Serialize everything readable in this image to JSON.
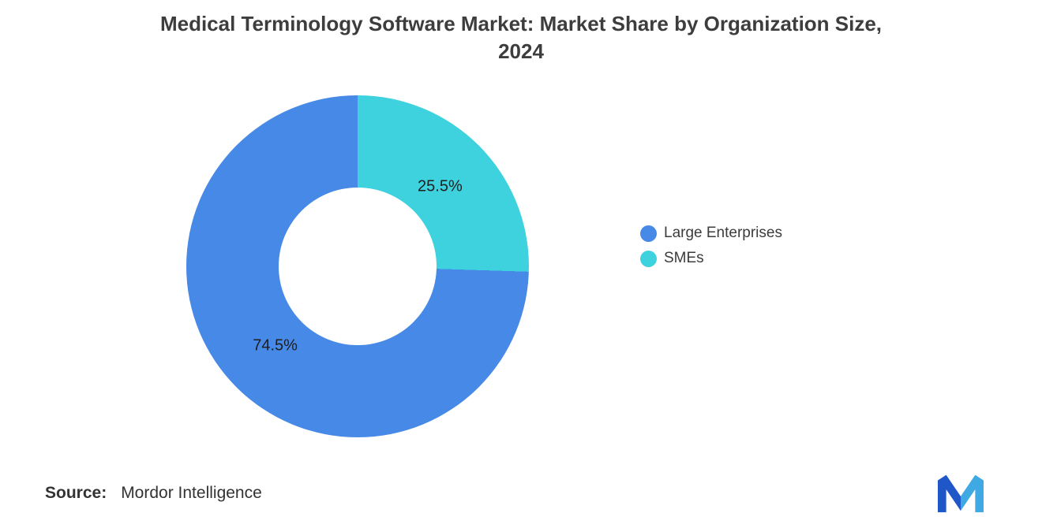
{
  "chart_data": {
    "type": "pie",
    "subtype": "donut",
    "title": "Medical Terminology Software Market: Market Share by Organization Size, 2024",
    "title_lines": [
      "Medical Terminology Software Market: Market Share by Organization Size,",
      "2024"
    ],
    "categories": [
      "Large Enterprises",
      "SMEs"
    ],
    "values": [
      74.5,
      25.5
    ],
    "unit": "%",
    "segments": [
      {
        "name": "SMEs",
        "value": 25.5,
        "label": "25.5%",
        "color": "#3ED2DE"
      },
      {
        "name": "Large Enterprises",
        "value": 74.5,
        "label": "74.5%",
        "color": "#4789E6"
      }
    ],
    "start_angle_deg": 0,
    "direction": "clockwise",
    "inner_radius_ratio": 0.46,
    "legend_position": "right",
    "grid": false
  },
  "legend": {
    "items": [
      {
        "label": "Large Enterprises",
        "color": "#4789E6"
      },
      {
        "label": "SMEs",
        "color": "#3ED2DE"
      }
    ]
  },
  "source": {
    "prefix": "Source:",
    "name": "Mordor Intelligence"
  },
  "logo": {
    "name": "mordor-intelligence-logo",
    "color_left": "#2057C8",
    "color_right": "#3FA9E4"
  }
}
